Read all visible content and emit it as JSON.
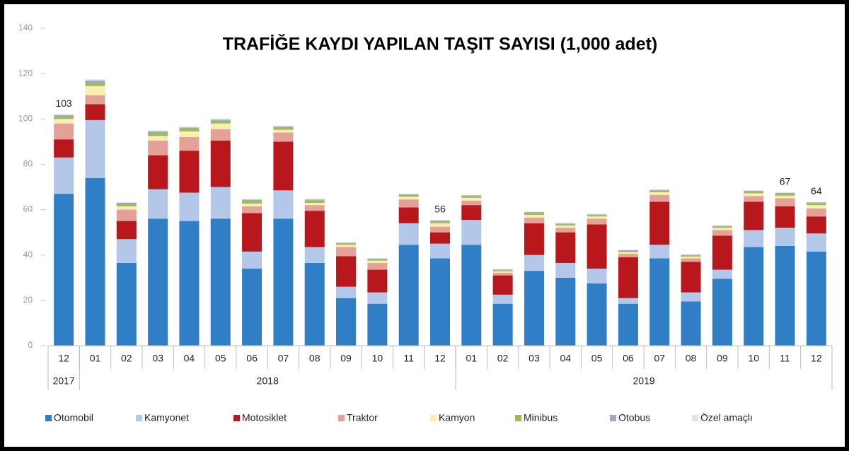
{
  "chart_data": {
    "type": "stacked_bar",
    "title": "TRAFİĞE KAYDI YAPILAN TAŞIT SAYISI (1,000 adet)",
    "categories": [
      "12",
      "01",
      "02",
      "03",
      "04",
      "05",
      "06",
      "07",
      "08",
      "09",
      "10",
      "11",
      "12",
      "01",
      "02",
      "03",
      "04",
      "05",
      "06",
      "07",
      "08",
      "09",
      "10",
      "11",
      "12"
    ],
    "groups": [
      {
        "label": "2017",
        "count": 1
      },
      {
        "label": "2018",
        "count": 12
      },
      {
        "label": "2019",
        "count": 12
      }
    ],
    "ylim": [
      0,
      140
    ],
    "yticks": [
      0,
      20,
      40,
      60,
      80,
      100,
      120,
      140
    ],
    "total_labels": [
      103,
      null,
      null,
      null,
      null,
      null,
      null,
      null,
      null,
      null,
      null,
      null,
      56,
      null,
      null,
      null,
      null,
      null,
      null,
      null,
      null,
      null,
      null,
      67,
      64
    ],
    "series": [
      {
        "name": "Otomobil",
        "color": "#2f7ec6",
        "values": [
          67,
          74,
          36.5,
          56,
          55,
          56,
          34,
          56,
          36.5,
          21,
          18.5,
          44.5,
          38.5,
          44.5,
          18.5,
          33,
          30,
          27.5,
          18.5,
          38.5,
          19.5,
          29.5,
          43.5,
          44,
          41.5
        ]
      },
      {
        "name": "Kamyonet",
        "color": "#b3c8e8",
        "values": [
          16,
          25.5,
          10.5,
          13,
          12.5,
          14,
          7.5,
          12.5,
          7,
          5,
          5,
          9.5,
          6.5,
          11,
          4,
          7,
          6.5,
          6.5,
          2.5,
          6,
          4,
          4,
          7.5,
          8,
          8
        ]
      },
      {
        "name": "Motosiklet",
        "color": "#b8171c",
        "values": [
          8,
          7,
          8,
          15,
          18.5,
          20.5,
          17,
          21.5,
          16,
          13.5,
          10,
          7,
          5,
          6.5,
          8.5,
          14,
          13.5,
          19.5,
          18,
          19,
          13.5,
          15,
          12.5,
          9.5,
          7.5
        ]
      },
      {
        "name": "Traktor",
        "color": "#e3a197",
        "values": [
          7,
          4,
          5,
          6.5,
          6,
          5,
          3,
          4,
          2.5,
          4,
          3,
          3.5,
          2.5,
          2,
          1.2,
          2.5,
          2,
          2.5,
          1.5,
          3,
          1.5,
          2.5,
          2.5,
          3.5,
          3.5
        ]
      },
      {
        "name": "Kamyon",
        "color": "#fbeeb0",
        "values": [
          2,
          4,
          1.5,
          2,
          2.5,
          2.5,
          1.2,
          1.2,
          1,
          1,
          1,
          1.2,
          1.5,
          1.2,
          0.6,
          1.2,
          1,
          1,
          0.8,
          1.2,
          0.8,
          1,
          1.2,
          1.2,
          1.5
        ]
      },
      {
        "name": "Minibus",
        "color": "#9cbb55",
        "values": [
          1,
          1.5,
          1,
          1.5,
          1.2,
          1.2,
          1.2,
          1,
          1,
          0.6,
          0.6,
          0.7,
          0.8,
          0.7,
          0.5,
          0.8,
          0.6,
          0.6,
          0.5,
          0.7,
          0.5,
          0.6,
          0.7,
          0.8,
          0.8
        ]
      },
      {
        "name": "Otobus",
        "color": "#a4a6c9",
        "values": [
          0.7,
          1,
          0.5,
          0.5,
          0.5,
          0.5,
          0.5,
          0.5,
          0.5,
          0.3,
          0.3,
          0.4,
          0.4,
          0.4,
          0.3,
          0.4,
          0.3,
          0.3,
          0.3,
          0.3,
          0.3,
          0.3,
          0.4,
          0.4,
          0.4
        ]
      },
      {
        "name": "Özel amaçlı",
        "color": "#dbe7ef",
        "values": [
          0.5,
          0.5,
          0.3,
          0.5,
          0.5,
          0.5,
          0.3,
          0.3,
          0.3,
          0.3,
          0.3,
          0.3,
          0.3,
          0.3,
          0.2,
          0.3,
          0.3,
          0.3,
          0.2,
          0.3,
          0.2,
          0.2,
          0.3,
          0.3,
          0.3
        ]
      }
    ]
  }
}
